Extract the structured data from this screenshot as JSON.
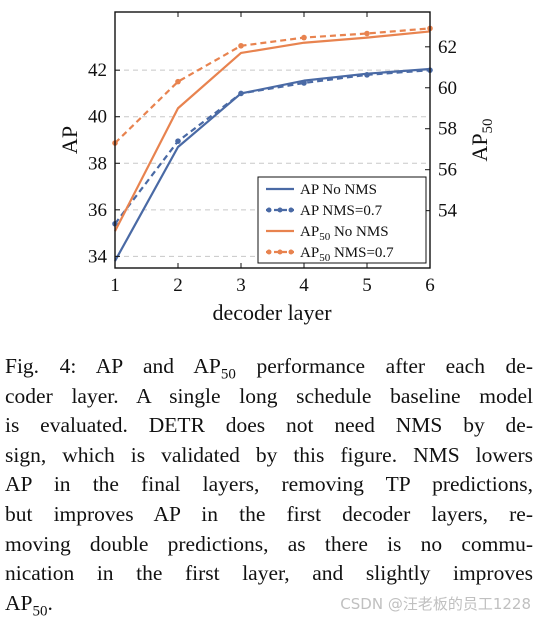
{
  "chart_data": {
    "type": "line",
    "x": [
      1,
      2,
      3,
      4,
      5,
      6
    ],
    "xlabel": "decoder layer",
    "xticks": [
      "1",
      "2",
      "3",
      "4",
      "5",
      "6"
    ],
    "xlim": [
      1,
      6
    ],
    "left_axis": {
      "label": "AP",
      "ylim": [
        33.5,
        44.5
      ],
      "ticks": [
        34,
        36,
        38,
        40,
        42
      ],
      "tick_labels": [
        "34",
        "36",
        "38",
        "40",
        "42"
      ]
    },
    "right_axis": {
      "label_main": "AP",
      "label_sub": "50",
      "ylim": [
        51.2,
        63.7
      ],
      "ticks": [
        54,
        56,
        58,
        60,
        62
      ],
      "tick_labels": [
        "54",
        "56",
        "58",
        "60",
        "62"
      ]
    },
    "grid": "horizontal dashed",
    "legend_placement": "bottom-right",
    "series": [
      {
        "name_main": "AP",
        "name_sub": "",
        "name_rest": " No NMS",
        "axis": "left",
        "style": "solid",
        "marker": "none",
        "color": "#4a6aa5",
        "values": [
          33.8,
          38.7,
          41.0,
          41.55,
          41.85,
          42.05
        ]
      },
      {
        "name_main": "AP",
        "name_sub": "",
        "name_rest": " NMS=0.7",
        "axis": "left",
        "style": "dashed",
        "marker": "dot",
        "color": "#4a6aa5",
        "values": [
          35.4,
          38.95,
          41.0,
          41.45,
          41.8,
          42.0
        ]
      },
      {
        "name_main": "AP",
        "name_sub": "50",
        "name_rest": " No NMS",
        "axis": "right",
        "style": "solid",
        "marker": "none",
        "color": "#e8834f",
        "values": [
          53.0,
          59.0,
          61.7,
          62.2,
          62.45,
          62.75
        ]
      },
      {
        "name_main": "AP",
        "name_sub": "50",
        "name_rest": " NMS=0.7",
        "axis": "right",
        "style": "dashed",
        "marker": "dot",
        "color": "#e8834f",
        "values": [
          57.3,
          60.3,
          62.05,
          62.45,
          62.65,
          62.9
        ]
      }
    ]
  },
  "caption": {
    "lines": [
      {
        "pre": "Fig. 4: AP and AP",
        "sub": "50",
        "post": " performance after each de-"
      },
      {
        "pre": "coder layer. A single long schedule baseline model",
        "sub": "",
        "post": ""
      },
      {
        "pre": "is evaluated. DETR does not need NMS by de-",
        "sub": "",
        "post": ""
      },
      {
        "pre": "sign, which is validated by this figure. NMS lowers",
        "sub": "",
        "post": ""
      },
      {
        "pre": "AP in the final layers, removing TP predictions,",
        "sub": "",
        "post": ""
      },
      {
        "pre": "but improves AP in the first decoder layers, re-",
        "sub": "",
        "post": ""
      },
      {
        "pre": "moving double predictions, as there is no commu-",
        "sub": "",
        "post": ""
      },
      {
        "pre": "nication in the first layer, and slightly improves",
        "sub": "",
        "post": ""
      },
      {
        "pre": "AP",
        "sub": "50",
        "post": "."
      }
    ]
  },
  "watermark": "CSDN @汪老板的员工1228"
}
